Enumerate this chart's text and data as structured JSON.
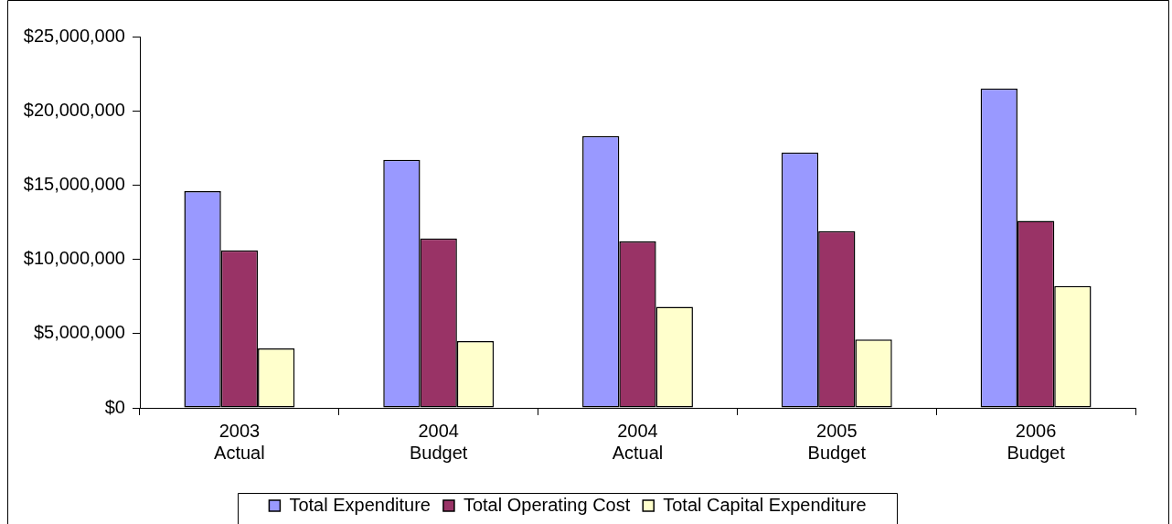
{
  "chart_data": {
    "type": "bar",
    "categories": [
      "2003 Actual",
      "2004 Budget",
      "2004 Actual",
      "2005 Budget",
      "2006 Budget"
    ],
    "series": [
      {
        "name": "Total Expenditure",
        "color": "#9999ff",
        "values": [
          14600000,
          16700000,
          18300000,
          17200000,
          21500000
        ]
      },
      {
        "name": "Total Operating Cost",
        "color": "#993366",
        "values": [
          10600000,
          11400000,
          11200000,
          11900000,
          12600000
        ]
      },
      {
        "name": "Total Capital Expenditure",
        "color": "#ffffcc",
        "values": [
          4000000,
          4500000,
          6800000,
          4600000,
          8200000
        ]
      }
    ],
    "ylim": [
      0,
      25000000
    ],
    "yticks": [
      {
        "value": 0,
        "label": "$0"
      },
      {
        "value": 5000000,
        "label": "$5,000,000"
      },
      {
        "value": 10000000,
        "label": "$10,000,000"
      },
      {
        "value": 15000000,
        "label": "$15,000,000"
      },
      {
        "value": 20000000,
        "label": "$20,000,000"
      },
      {
        "value": 25000000,
        "label": "$25,000,000"
      }
    ],
    "legend": "bottom"
  }
}
